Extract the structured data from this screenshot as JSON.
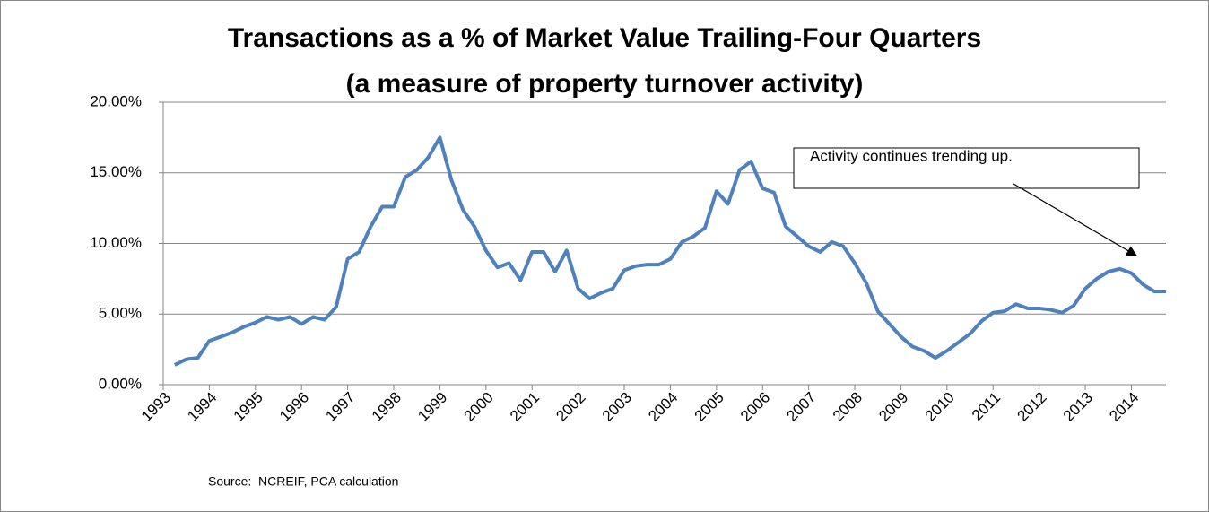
{
  "chart_data": {
    "type": "line",
    "title": "Transactions as a % of Market Value Trailing-Four Quarters",
    "subtitle": "(a measure of property turnover activity)",
    "annotation": "Activity continues trending up.",
    "source": "Source:  NCREIF, PCA calculation",
    "color": "#4f81bd",
    "x": [
      1993.25,
      1993.5,
      1993.75,
      1994,
      1994.25,
      1994.5,
      1994.75,
      1995,
      1995.25,
      1995.5,
      1995.75,
      1996,
      1996.25,
      1996.5,
      1996.75,
      1997,
      1997.25,
      1997.5,
      1997.75,
      1998,
      1998.25,
      1998.5,
      1998.75,
      1999,
      1999.25,
      1999.5,
      1999.75,
      2000,
      2000.25,
      2000.5,
      2000.75,
      2001,
      2001.25,
      2001.5,
      2001.75,
      2002,
      2002.25,
      2002.5,
      2002.75,
      2003,
      2003.25,
      2003.5,
      2003.75,
      2004,
      2004.25,
      2004.5,
      2004.75,
      2005,
      2005.25,
      2005.5,
      2005.75,
      2006,
      2006.25,
      2006.5,
      2006.75,
      2007,
      2007.25,
      2007.5,
      2007.75,
      2008,
      2008.25,
      2008.5,
      2008.75,
      2009,
      2009.25,
      2009.5,
      2009.75,
      2010,
      2010.25,
      2010.5,
      2010.75,
      2011,
      2011.25,
      2011.5,
      2011.75,
      2012,
      2012.25,
      2012.5,
      2012.75,
      2013,
      2013.25,
      2013.5,
      2013.75,
      2014,
      2014.25,
      2014.5,
      2014.75
    ],
    "values": [
      1.4,
      1.8,
      1.9,
      3.1,
      3.4,
      3.7,
      4.1,
      4.4,
      4.8,
      4.6,
      4.8,
      4.3,
      4.8,
      4.6,
      5.5,
      8.9,
      9.4,
      11.2,
      12.6,
      12.6,
      14.7,
      15.2,
      16.1,
      17.5,
      14.5,
      12.4,
      11.2,
      9.5,
      8.3,
      8.6,
      7.4,
      9.4,
      9.4,
      8.0,
      9.5,
      6.8,
      6.1,
      6.5,
      6.8,
      8.1,
      8.4,
      8.5,
      8.5,
      8.9,
      10.1,
      10.5,
      11.1,
      13.7,
      12.8,
      15.2,
      15.8,
      13.9,
      13.6,
      11.2,
      10.5,
      9.8,
      9.4,
      10.1,
      9.8,
      8.6,
      7.2,
      5.2,
      4.3,
      3.4,
      2.7,
      2.4,
      1.9,
      2.4,
      3.0,
      3.6,
      4.5,
      5.1,
      5.2,
      5.7,
      5.4,
      5.4,
      5.3,
      5.1,
      5.6,
      6.8,
      7.5,
      8.0,
      8.2,
      7.9,
      7.1,
      6.6,
      6.6
    ],
    "xlim": [
      1993,
      2014.75
    ],
    "xticks": [
      1993,
      1994,
      1995,
      1996,
      1997,
      1998,
      1999,
      2000,
      2001,
      2002,
      2003,
      2004,
      2005,
      2006,
      2007,
      2008,
      2009,
      2010,
      2011,
      2012,
      2013,
      2014
    ],
    "ylim": [
      0,
      20
    ],
    "yticks": [
      {
        "value": 0,
        "label": "0.00%"
      },
      {
        "value": 5,
        "label": "5.00%"
      },
      {
        "value": 10,
        "label": "10.00%"
      },
      {
        "value": 15,
        "label": "15.00%"
      },
      {
        "value": 20,
        "label": "20.00%"
      }
    ],
    "grid": true
  }
}
